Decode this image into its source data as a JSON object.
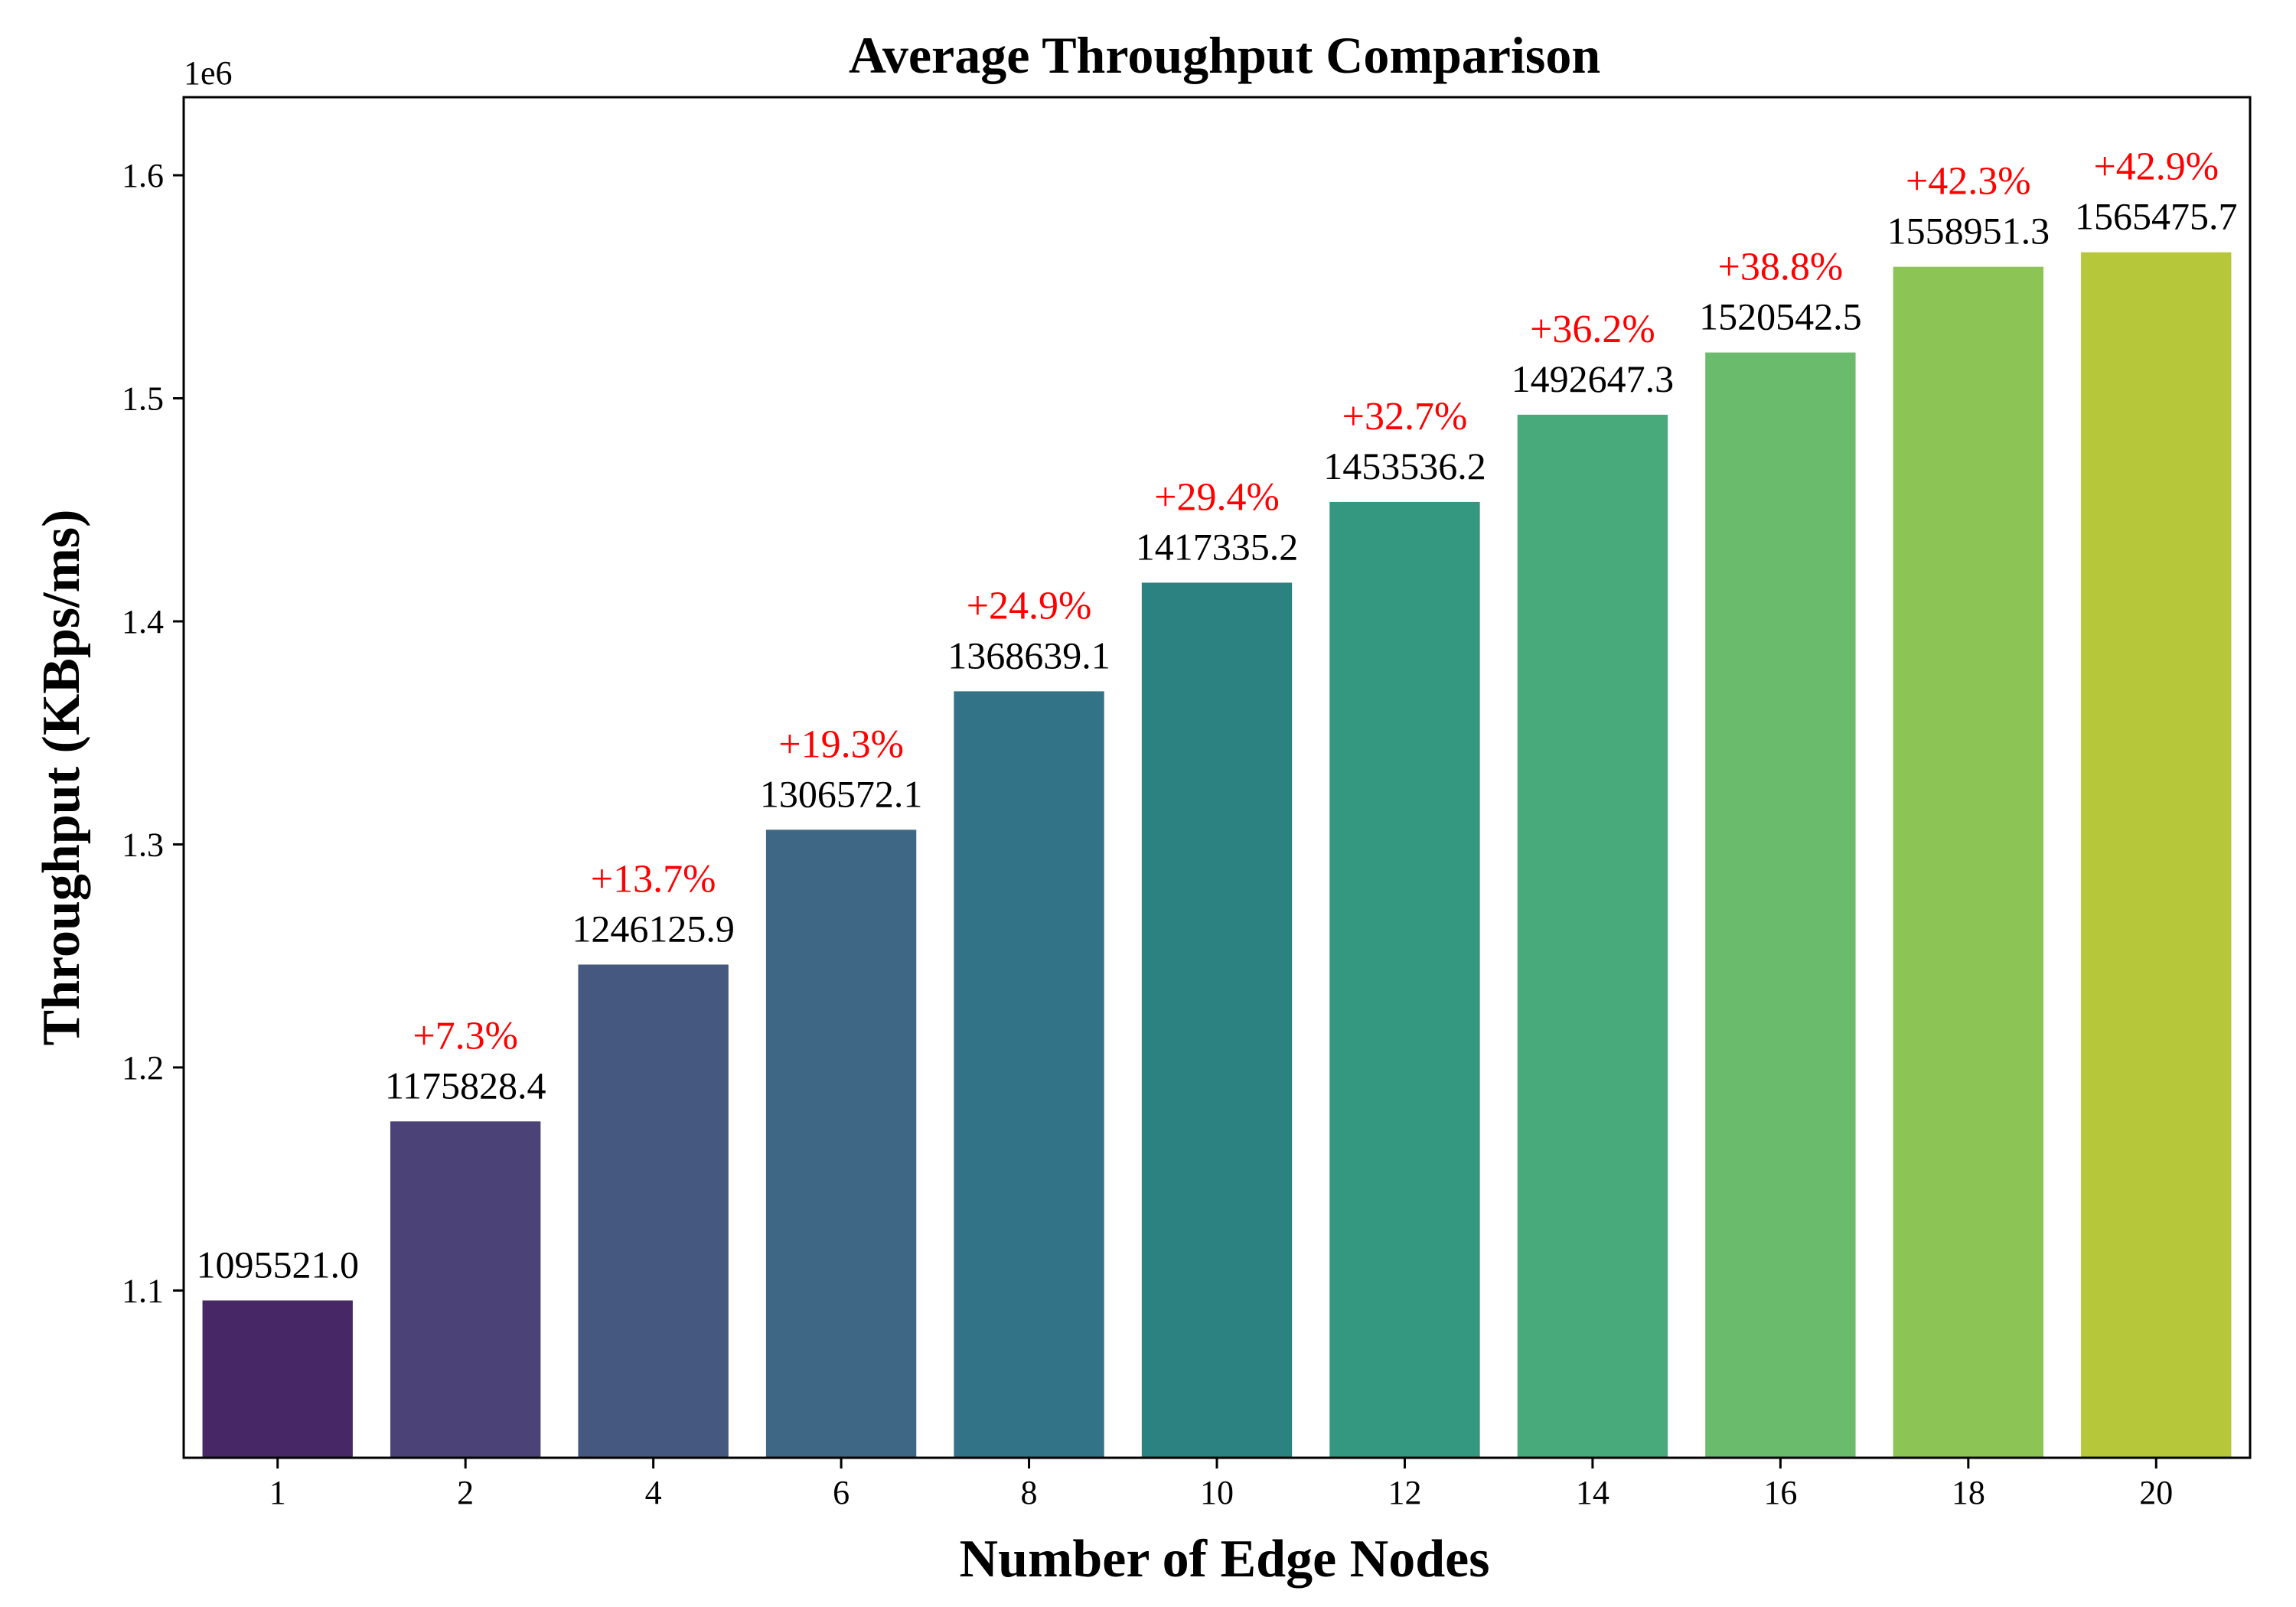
{
  "chart_data": {
    "type": "bar",
    "title": "Average Throughput Comparison",
    "xlabel": "Number of Edge Nodes",
    "ylabel": "Throughput (KBps/ms)",
    "y_offset_label": "1e6",
    "categories": [
      "1",
      "2",
      "4",
      "6",
      "8",
      "10",
      "12",
      "14",
      "16",
      "18",
      "20"
    ],
    "values": [
      1095521.0,
      1175828.4,
      1246125.9,
      1306572.1,
      1368639.1,
      1417335.2,
      1453536.2,
      1492647.3,
      1520542.5,
      1558951.3,
      1565475.7
    ],
    "value_labels": [
      "1095521.0",
      "1175828.4",
      "1246125.9",
      "1306572.1",
      "1368639.1",
      "1417335.2",
      "1453536.2",
      "1492647.3",
      "1520542.5",
      "1558951.3",
      "1565475.7"
    ],
    "improvement_labels": [
      "",
      "+7.3%",
      "+13.7%",
      "+19.3%",
      "+24.9%",
      "+29.4%",
      "+32.7%",
      "+36.2%",
      "+38.8%",
      "+42.3%",
      "+42.9%"
    ],
    "ylim": [
      1.025,
      1.635
    ],
    "y_ticks": [
      1.1,
      1.2,
      1.3,
      1.4,
      1.5,
      1.6
    ],
    "y_tick_labels": [
      "1.1",
      "1.2",
      "1.3",
      "1.4",
      "1.5",
      "1.6"
    ],
    "y_scale_factor": 1000000,
    "grid": false,
    "legend": "none",
    "colors": [
      "#482767",
      "#4b4278",
      "#45587f",
      "#3d6784",
      "#337387",
      "#2c8280",
      "#33987f",
      "#48a97a",
      "#6abb6c",
      "#8dc456",
      "#b6c83a"
    ],
    "annotation_color": "#ff0000"
  }
}
